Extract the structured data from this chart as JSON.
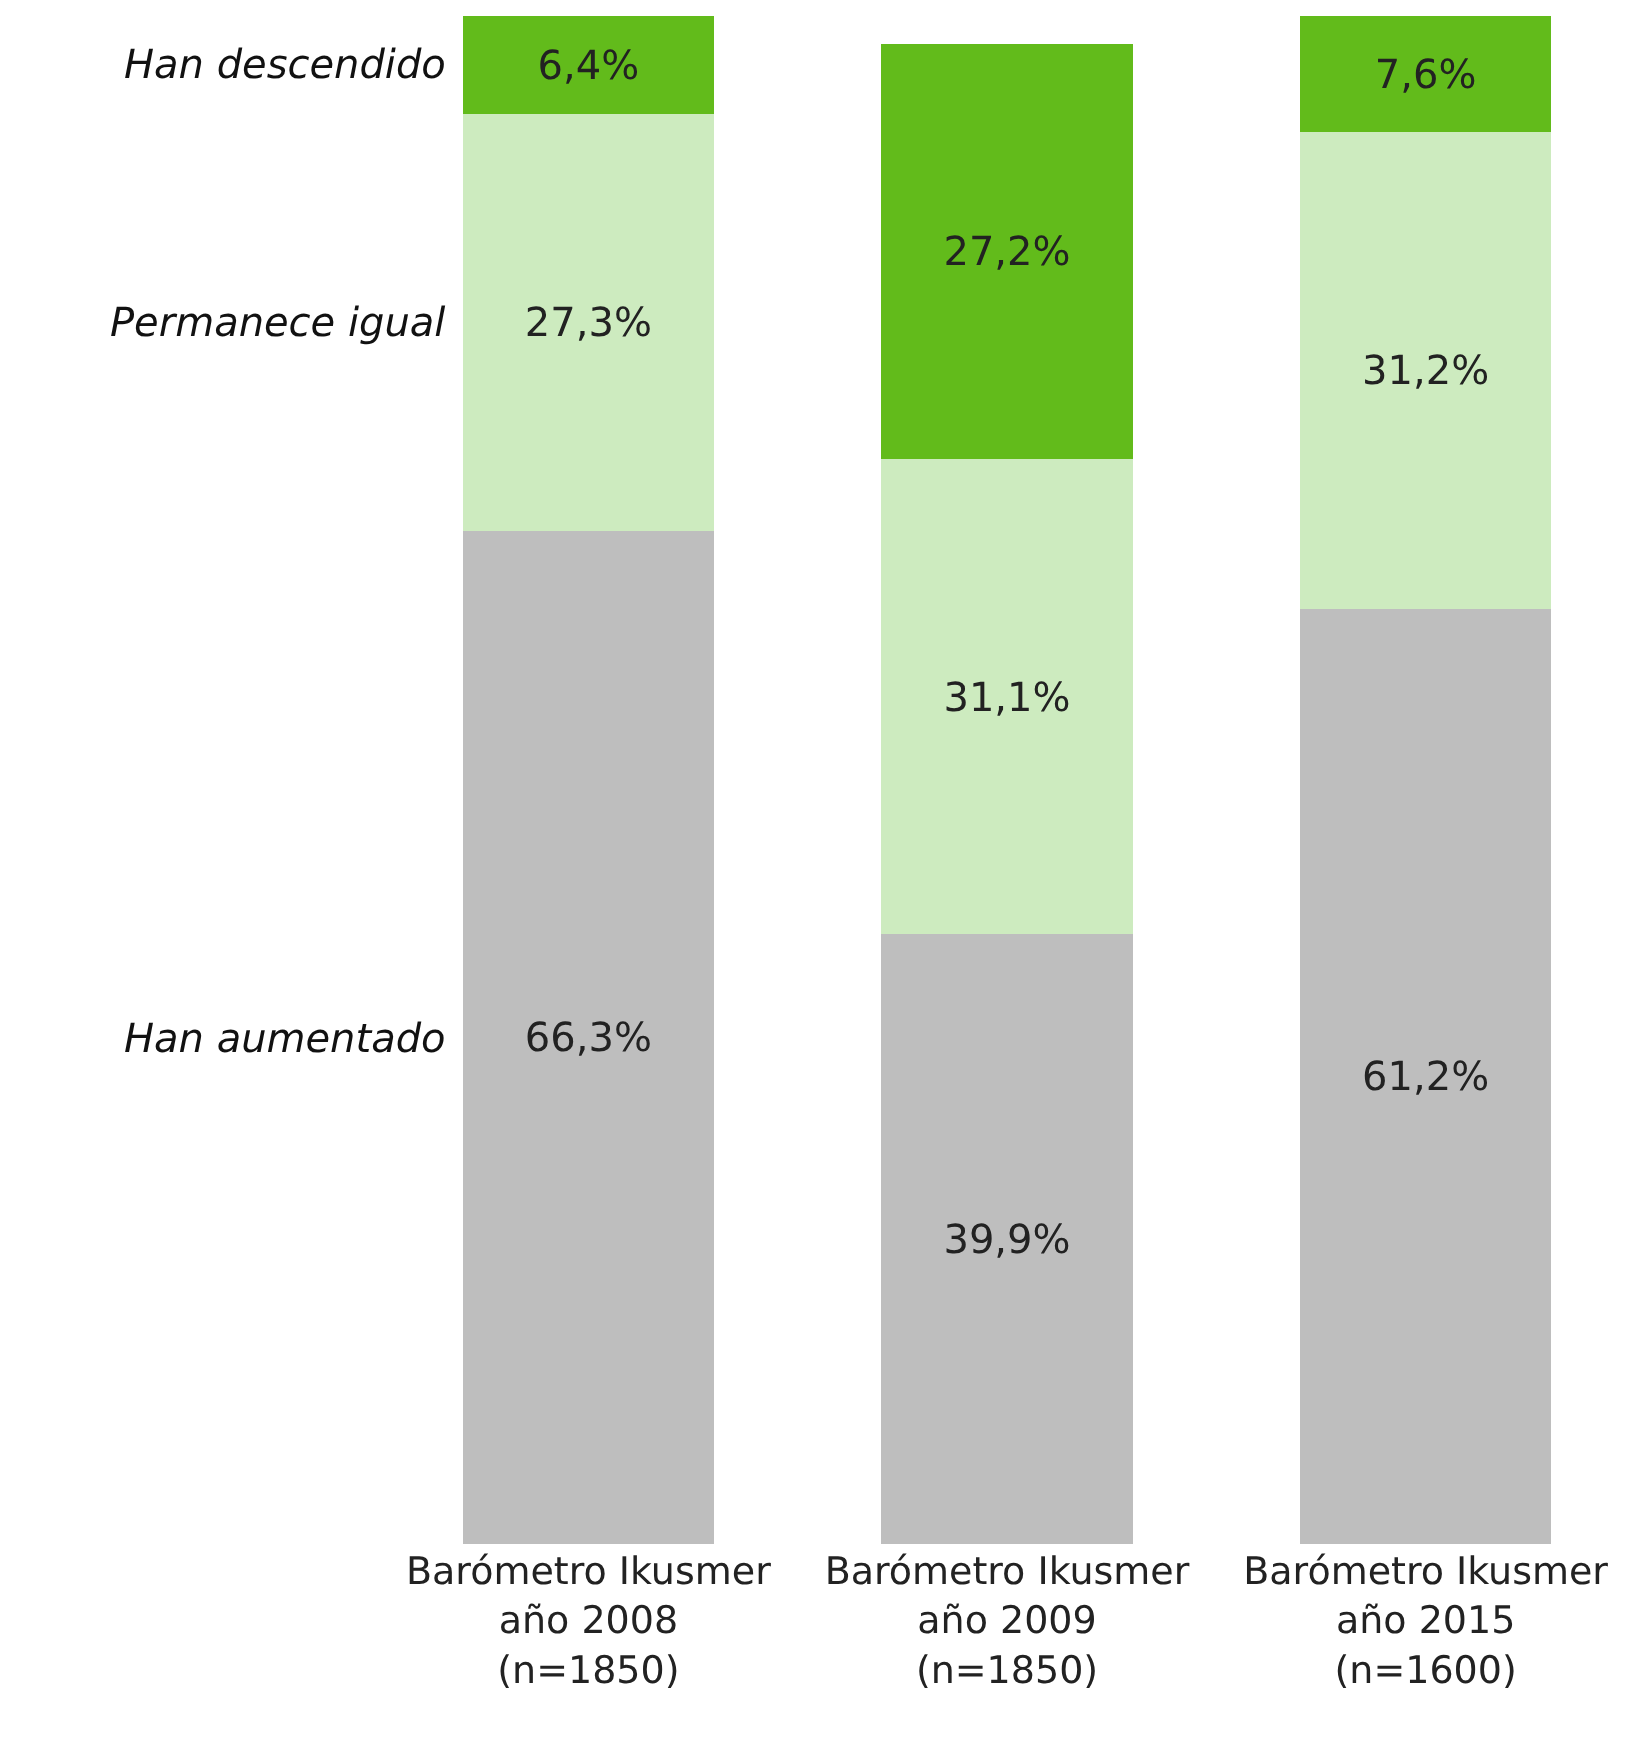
{
  "chart_data": {
    "type": "bar",
    "stacked": true,
    "categories": [
      "Barómetro Ikusmer\naño 2008\n(n=1850)",
      "Barómetro Ikusmer\naño 2009\n(n=1850)",
      "Barómetro Ikusmer\naño 2015\n(n=1600)"
    ],
    "series": [
      {
        "name": "Han aumentado",
        "color": "#bebebe",
        "values": [
          66.3,
          39.9,
          61.2
        ],
        "value_labels": [
          "66,3%",
          "39,9%",
          "61,2%"
        ]
      },
      {
        "name": "Permanece igual",
        "color": "#cdebbf",
        "values": [
          27.3,
          31.1,
          31.2
        ],
        "value_labels": [
          "27,3%",
          "31,1%",
          "31,2%"
        ]
      },
      {
        "name": "Han descendido",
        "color": "#62bb1b",
        "values": [
          6.4,
          27.2,
          7.6
        ],
        "value_labels": [
          "6,4%",
          "27,2%",
          "7,6%"
        ]
      }
    ]
  }
}
